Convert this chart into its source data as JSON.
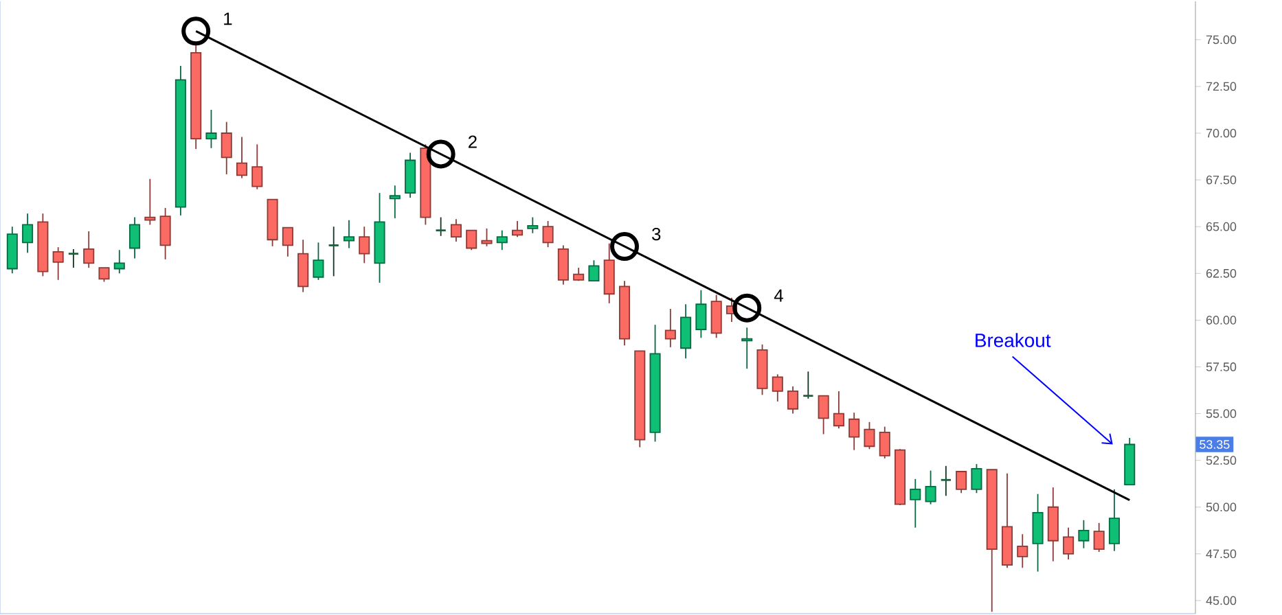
{
  "chart_data": {
    "type": "candlestick",
    "categories": [
      null,
      null,
      null,
      null,
      null,
      null,
      null,
      null,
      null,
      null,
      null,
      null,
      null,
      null,
      null,
      null,
      null,
      null,
      null,
      null,
      null,
      null,
      null,
      null,
      null,
      null,
      null,
      null,
      null,
      null,
      null,
      null,
      null,
      null,
      null,
      null,
      null,
      null,
      null,
      null,
      null,
      null,
      null,
      null,
      null,
      null,
      null,
      null,
      null,
      null,
      null,
      null,
      null,
      null,
      null,
      null,
      null,
      null,
      null,
      null,
      null,
      null,
      null,
      null,
      null,
      null,
      null,
      null,
      null,
      null,
      null,
      null,
      null,
      null
    ],
    "ohlc": [
      [
        62.75,
        65.0,
        62.5,
        64.6
      ],
      [
        64.15,
        65.7,
        63.6,
        65.1
      ],
      [
        65.25,
        65.7,
        62.35,
        62.6
      ],
      [
        63.65,
        63.9,
        62.15,
        63.1
      ],
      [
        63.55,
        63.8,
        62.8,
        63.55
      ],
      [
        63.8,
        64.75,
        62.8,
        63.05
      ],
      [
        62.8,
        62.8,
        62.05,
        62.2
      ],
      [
        62.75,
        63.75,
        62.5,
        63.05
      ],
      [
        63.85,
        65.5,
        63.3,
        65.1
      ],
      [
        65.5,
        67.55,
        65.1,
        65.35
      ],
      [
        65.55,
        66.0,
        63.25,
        64.0
      ],
      [
        66.05,
        73.6,
        65.6,
        72.85
      ],
      [
        74.3,
        74.8,
        69.15,
        69.7
      ],
      [
        69.7,
        71.25,
        69.2,
        70.0
      ],
      [
        70.0,
        70.6,
        67.8,
        68.7
      ],
      [
        68.4,
        69.8,
        67.6,
        67.75
      ],
      [
        68.2,
        69.4,
        67.0,
        67.15
      ],
      [
        66.45,
        66.45,
        63.95,
        64.3
      ],
      [
        64.95,
        64.95,
        63.4,
        64.0
      ],
      [
        63.55,
        64.3,
        61.5,
        61.8
      ],
      [
        62.3,
        64.15,
        62.15,
        63.2
      ],
      [
        64.0,
        65.0,
        62.35,
        64.0
      ],
      [
        64.25,
        65.35,
        63.85,
        64.45
      ],
      [
        64.45,
        65.0,
        63.05,
        63.55
      ],
      [
        63.05,
        66.8,
        62.0,
        65.25
      ],
      [
        66.5,
        67.2,
        65.45,
        66.65
      ],
      [
        66.8,
        68.95,
        66.55,
        68.55
      ],
      [
        69.2,
        69.4,
        65.1,
        65.5
      ],
      [
        64.8,
        65.5,
        64.5,
        64.8
      ],
      [
        65.1,
        65.4,
        64.2,
        64.45
      ],
      [
        64.8,
        64.8,
        63.75,
        63.85
      ],
      [
        64.25,
        64.9,
        63.95,
        64.1
      ],
      [
        64.15,
        64.8,
        63.75,
        64.45
      ],
      [
        64.8,
        65.3,
        64.45,
        64.55
      ],
      [
        64.9,
        65.5,
        64.65,
        65.05
      ],
      [
        65.0,
        65.3,
        63.9,
        64.15
      ],
      [
        63.8,
        64.0,
        61.9,
        62.15
      ],
      [
        62.45,
        62.8,
        62.1,
        62.15
      ],
      [
        62.1,
        63.2,
        62.1,
        62.9
      ],
      [
        63.2,
        64.1,
        60.9,
        61.4
      ],
      [
        61.8,
        62.1,
        58.65,
        59.0
      ],
      [
        58.35,
        58.35,
        53.2,
        53.6
      ],
      [
        54.0,
        59.75,
        53.5,
        58.2
      ],
      [
        59.45,
        60.6,
        58.55,
        59.0
      ],
      [
        58.5,
        60.85,
        57.95,
        60.15
      ],
      [
        59.5,
        61.6,
        59.05,
        60.85
      ],
      [
        61.0,
        61.35,
        59.05,
        59.3
      ],
      [
        60.75,
        61.2,
        59.9,
        60.35
      ],
      [
        58.9,
        59.6,
        57.4,
        59.0
      ],
      [
        58.4,
        58.7,
        56.0,
        56.35
      ],
      [
        56.95,
        57.1,
        55.65,
        56.2
      ],
      [
        56.2,
        56.45,
        55.0,
        55.25
      ],
      [
        55.95,
        57.25,
        55.8,
        55.95
      ],
      [
        55.95,
        55.95,
        53.9,
        54.75
      ],
      [
        55.0,
        56.2,
        54.2,
        54.35
      ],
      [
        54.7,
        55.05,
        53.05,
        53.75
      ],
      [
        54.15,
        54.55,
        53.1,
        53.25
      ],
      [
        54.0,
        54.3,
        52.6,
        52.75
      ],
      [
        53.05,
        53.1,
        50.1,
        50.15
      ],
      [
        50.4,
        51.5,
        48.9,
        50.95
      ],
      [
        50.3,
        51.95,
        50.15,
        51.1
      ],
      [
        51.45,
        52.2,
        50.6,
        51.45
      ],
      [
        51.9,
        51.9,
        50.75,
        50.95
      ],
      [
        50.95,
        52.3,
        50.75,
        52.05
      ],
      [
        52.0,
        52.0,
        44.4,
        47.75
      ],
      [
        48.95,
        51.8,
        46.75,
        46.9
      ],
      [
        47.9,
        48.55,
        46.75,
        47.35
      ],
      [
        48.05,
        50.7,
        46.55,
        49.7
      ],
      [
        50.0,
        51.05,
        47.1,
        48.2
      ],
      [
        48.4,
        48.9,
        47.2,
        47.5
      ],
      [
        48.2,
        49.3,
        47.8,
        48.75
      ],
      [
        48.7,
        49.15,
        47.6,
        47.75
      ],
      [
        48.05,
        50.95,
        47.65,
        49.4
      ],
      [
        51.2,
        53.7,
        51.2,
        53.35
      ]
    ],
    "colors": [
      "#0fbf76",
      "#0fbf76",
      "#fc6b63",
      "#fc6b63",
      "#1e5e3c",
      "#fc6b63",
      "#fc6b63",
      "#0fbf76",
      "#0fbf76",
      "#fc6b63",
      "#fc6b63",
      "#0fbf76",
      "#fc6b63",
      "#0fbf76",
      "#fc6b63",
      "#fc6b63",
      "#fc6b63",
      "#fc6b63",
      "#fc6b63",
      "#fc6b63",
      "#0fbf76",
      "#1e5e3c",
      "#0fbf76",
      "#fc6b63",
      "#0fbf76",
      "#0fbf76",
      "#0fbf76",
      "#fc6b63",
      "#1e5e3c",
      "#fc6b63",
      "#fc6b63",
      "#fc6b63",
      "#0fbf76",
      "#fc6b63",
      "#0fbf76",
      "#fc6b63",
      "#fc6b63",
      "#fc6b63",
      "#0fbf76",
      "#fc6b63",
      "#fc6b63",
      "#fc6b63",
      "#0fbf76",
      "#fc6b63",
      "#0fbf76",
      "#0fbf76",
      "#fc6b63",
      "#fc6b63",
      "#0fbf76",
      "#fc6b63",
      "#fc6b63",
      "#fc6b63",
      "#1e5e3c",
      "#fc6b63",
      "#fc6b63",
      "#fc6b63",
      "#fc6b63",
      "#fc6b63",
      "#fc6b63",
      "#0fbf76",
      "#0fbf76",
      "#1e5e3c",
      "#fc6b63",
      "#0fbf76",
      "#fc6b63",
      "#fc6b63",
      "#fc6b63",
      "#0fbf76",
      "#fc6b63",
      "#fc6b63",
      "#0fbf76",
      "#fc6b63",
      "#0fbf76",
      "#0fbf76"
    ],
    "series": [
      {
        "type": "line",
        "values": [
          null,
          null,
          null,
          null,
          null,
          null,
          null,
          null,
          null,
          null,
          null,
          null,
          75.46,
          null,
          null,
          null,
          null,
          null,
          null,
          null,
          null,
          null,
          null,
          null,
          null,
          null,
          null,
          null,
          null,
          null,
          null,
          null,
          null,
          null,
          null,
          null,
          null,
          null,
          null,
          null,
          null,
          null,
          null,
          null,
          null,
          null,
          null,
          null,
          null,
          null,
          null,
          null,
          null,
          null,
          null,
          null,
          null,
          null,
          null,
          null,
          null,
          null,
          null,
          null,
          null,
          null,
          null,
          null,
          null,
          null,
          null,
          null,
          null,
          50.37
        ],
        "color": "#000000"
      },
      {
        "type": "scatter",
        "values": [
          null,
          null,
          null,
          null,
          null,
          null,
          null,
          null,
          null,
          null,
          null,
          null,
          75.46,
          null,
          null,
          null,
          null,
          null,
          null,
          null,
          null,
          null,
          null,
          null,
          null,
          null,
          null,
          null,
          68.88,
          null,
          null,
          null,
          null,
          null,
          null,
          null,
          null,
          null,
          null,
          null,
          63.94,
          null,
          null,
          null,
          null,
          null,
          null,
          null,
          60.65,
          null,
          null,
          null,
          null,
          null,
          null,
          null,
          null,
          null,
          null,
          null,
          null,
          null,
          null,
          null,
          null,
          null,
          null,
          null,
          null,
          null,
          null,
          null,
          null,
          null
        ],
        "color": "#000000",
        "marker": "circle"
      }
    ],
    "ylim": [
      44.3,
      77.05
    ],
    "yticks": [
      {
        "value": 45,
        "label": "45.00"
      },
      {
        "value": 47.5,
        "label": "47.50"
      },
      {
        "value": 50,
        "label": "50.00"
      },
      {
        "value": 52.5,
        "label": "52.50"
      },
      {
        "value": 55,
        "label": "55.00"
      },
      {
        "value": 57.5,
        "label": "57.50"
      },
      {
        "value": 60,
        "label": "60.00"
      },
      {
        "value": 62.5,
        "label": "62.50"
      },
      {
        "value": 65,
        "label": "65.00"
      },
      {
        "value": 67.5,
        "label": "67.50"
      },
      {
        "value": 70,
        "label": "70.00"
      },
      {
        "value": 72.5,
        "label": "72.50"
      },
      {
        "value": 75,
        "label": "75.00"
      }
    ],
    "annotations": [
      "1",
      "2",
      "3",
      "4",
      "Breakout",
      "53.35"
    ]
  }
}
